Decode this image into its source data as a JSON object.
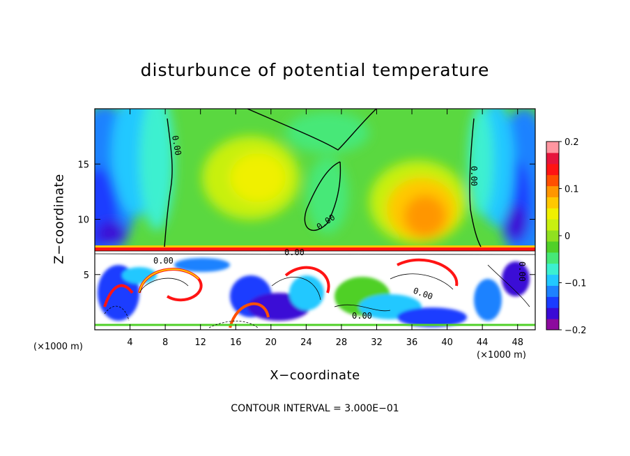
{
  "chart_data": {
    "type": "heatmap",
    "title": "disturbunce of potential temperature",
    "xlabel": "X−coordinate",
    "ylabel": "Z−coordinate",
    "x_unit_left": "(×1000 m)",
    "x_unit_right": "(×1000 m)",
    "footer": "CONTOUR INTERVAL = 3.000E−01",
    "xlim": [
      0,
      50
    ],
    "ylim": [
      0,
      20
    ],
    "x_ticks": [
      "4",
      "8",
      "12",
      "16",
      "20",
      "24",
      "28",
      "32",
      "36",
      "40",
      "44",
      "48"
    ],
    "y_ticks": [
      "5",
      "10",
      "15"
    ],
    "colorbar": {
      "range": [
        -0.2,
        0.2
      ],
      "tick_labels": [
        "0.2",
        "0.1",
        "0",
        "−0.1",
        "−0.2"
      ],
      "colors": [
        "#8c0a9e",
        "#3a0ad6",
        "#1a3cff",
        "#1e82ff",
        "#22c8ff",
        "#3cf0d0",
        "#46e878",
        "#50d028",
        "#90e020",
        "#c8f010",
        "#f0f000",
        "#ffc800",
        "#ff9600",
        "#ff5000",
        "#ff1414",
        "#e6143c",
        "#ff96a0"
      ]
    },
    "contour_labels": [
      "0.00",
      "0.00",
      "0.00",
      "0.00",
      "0.00",
      "0.00",
      "0.00",
      "0.00"
    ],
    "grid": false
  }
}
